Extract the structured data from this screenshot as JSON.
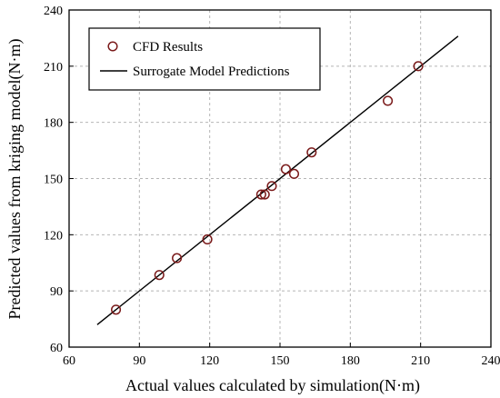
{
  "chart_data": {
    "type": "scatter",
    "xlabel": "Actual values calculated by simulation(N·m)",
    "ylabel": "Predicted values from kriging model(N·m)",
    "xlim": [
      60,
      240
    ],
    "ylim": [
      60,
      240
    ],
    "xticks": [
      60,
      90,
      120,
      150,
      180,
      210,
      240
    ],
    "yticks": [
      60,
      90,
      120,
      150,
      180,
      210,
      240
    ],
    "grid": true,
    "legend_position": "top-left",
    "series": [
      {
        "name": "CFD Results",
        "kind": "scatter",
        "marker": "open-circle",
        "color": "#7a1a1a",
        "points": [
          [
            80,
            80
          ],
          [
            98.5,
            98.5
          ],
          [
            106,
            107.5
          ],
          [
            119,
            117.5
          ],
          [
            142,
            141.5
          ],
          [
            143.5,
            141.5
          ],
          [
            146.5,
            146
          ],
          [
            152.5,
            155
          ],
          [
            156,
            152.5
          ],
          [
            163.5,
            164
          ],
          [
            196,
            191.5
          ],
          [
            209,
            210
          ]
        ]
      },
      {
        "name": "Surrogate Model Predictions",
        "kind": "line",
        "color": "#000000",
        "points": [
          [
            72,
            72
          ],
          [
            226,
            226
          ]
        ]
      }
    ]
  }
}
